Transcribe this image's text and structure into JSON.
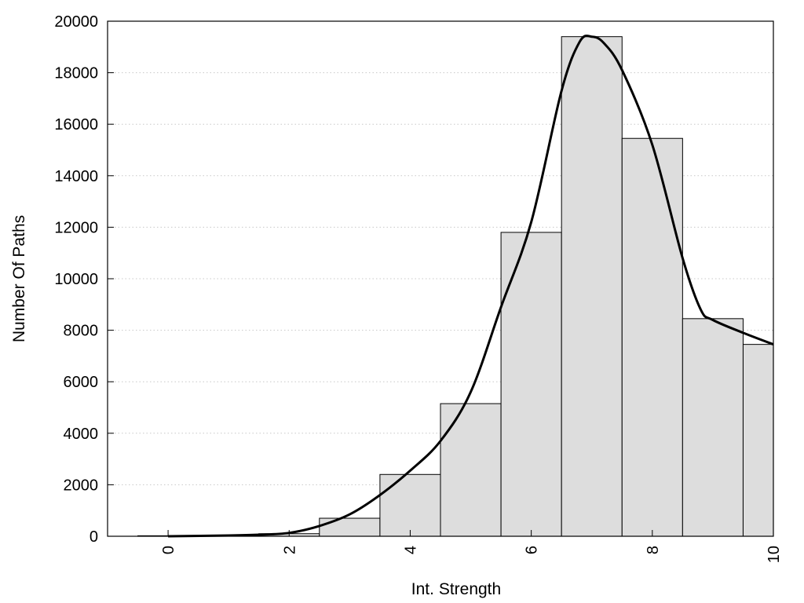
{
  "chart_data": {
    "type": "bar",
    "title": "",
    "xlabel": "Int. Strength",
    "ylabel": "Number Of Paths",
    "xlim": [
      -1,
      10
    ],
    "ylim": [
      0,
      20000
    ],
    "grid": {
      "y": true,
      "x": false,
      "style": "dotted"
    },
    "x_ticks": [
      "0",
      "2",
      "4",
      "6",
      "8",
      "10"
    ],
    "y_ticks": [
      "0",
      "2000",
      "4000",
      "6000",
      "8000",
      "10000",
      "12000",
      "14000",
      "16000",
      "18000",
      "20000"
    ],
    "x_tick_rotation": "vertical",
    "bars": {
      "x": [
        0,
        1,
        2,
        3,
        4,
        5,
        6,
        7,
        8,
        9,
        10
      ],
      "values": [
        20,
        30,
        100,
        700,
        2400,
        5150,
        11800,
        19400,
        15450,
        8450,
        7450
      ]
    },
    "fit_curve": {
      "x": [
        0,
        1,
        1.5,
        2,
        2.5,
        3,
        3.5,
        4,
        4.5,
        5,
        5.5,
        6,
        6.5,
        6.8,
        7,
        7.2,
        7.5,
        8,
        8.5,
        8.8,
        9,
        9.5,
        10
      ],
      "y": [
        0,
        30,
        60,
        130,
        400,
        850,
        1600,
        2550,
        3700,
        5600,
        8900,
        12200,
        17300,
        19200,
        19400,
        19150,
        18100,
        15200,
        10800,
        8800,
        8400,
        7900,
        7450
      ]
    },
    "colors": {
      "bar_fill": "#dddddd",
      "bar_stroke": "#000000",
      "curve": "#000000",
      "grid": "#c8c8c8"
    }
  }
}
